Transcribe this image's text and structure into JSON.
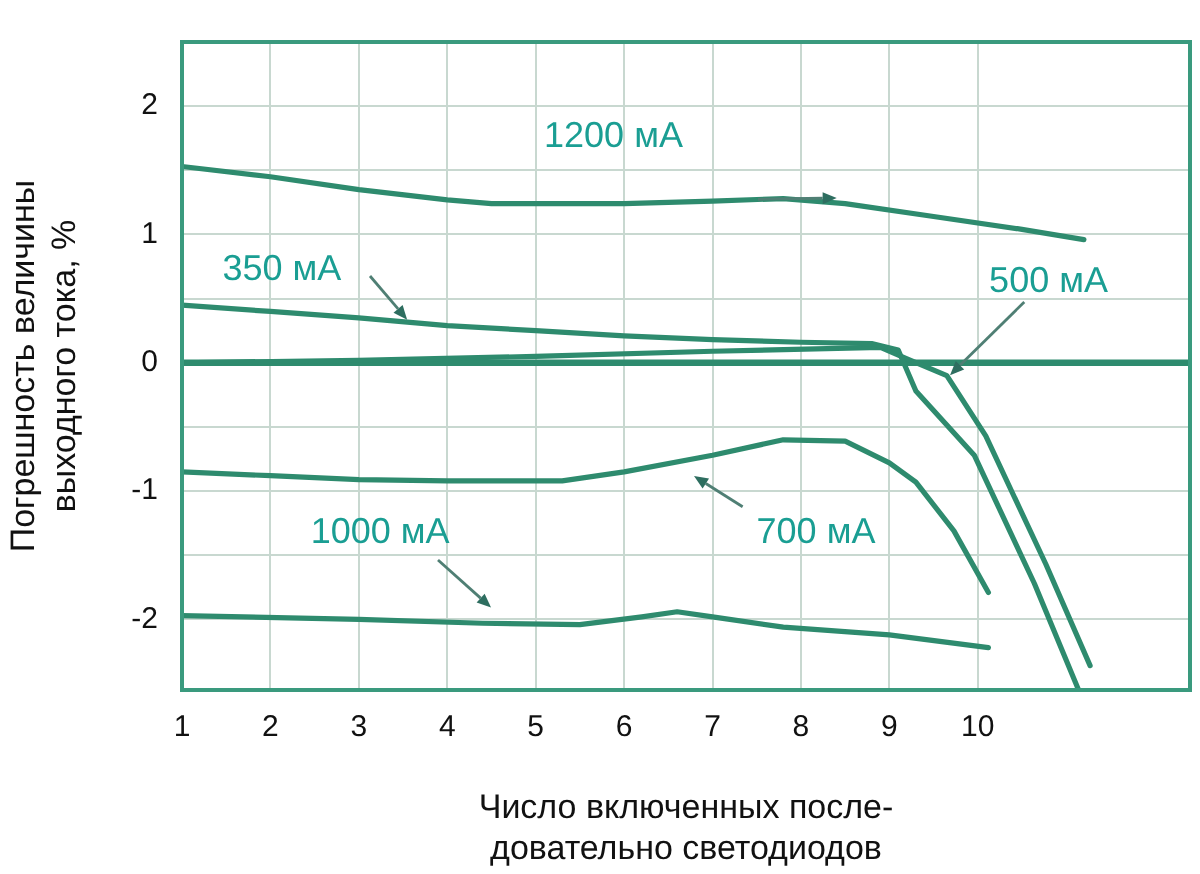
{
  "chart_data": {
    "type": "line",
    "xlabel": "Число включенных после-\nдовательно светодиодов",
    "ylabel": "Погрешность величины\nвыходного тока, %",
    "xlim": [
      1,
      12.4
    ],
    "xticks": [
      1,
      2,
      3,
      4,
      5,
      6,
      7,
      8,
      9,
      10
    ],
    "ylim": [
      -2.55,
      2.5
    ],
    "yticks": [
      -2,
      {
        "value": -1.5,
        "label": null
      },
      -1,
      {
        "value": -0.5,
        "label": null
      },
      0,
      {
        "value": 0.5,
        "label": null
      },
      1,
      {
        "value": 1.5,
        "label": null
      },
      2
    ],
    "grid": true,
    "legend": false,
    "marker": "none",
    "line_style": "solid",
    "ref_lines": [
      {
        "axis": "y",
        "value": 0,
        "color": "#2e8b6e"
      }
    ],
    "series": [
      {
        "name": "1200 мА",
        "color": "#2e8b6e",
        "x": [
          1,
          2,
          3,
          4,
          4.5,
          6,
          7,
          7.8,
          8.5,
          9.5,
          10.5,
          11.2
        ],
        "values": [
          1.53,
          1.45,
          1.35,
          1.27,
          1.24,
          1.24,
          1.26,
          1.28,
          1.24,
          1.14,
          1.04,
          0.96
        ]
      },
      {
        "name": "350 мА",
        "color": "#2e8b6e",
        "x": [
          1,
          2,
          3,
          4,
          5,
          6,
          7,
          8,
          8.8,
          9.1,
          9.3,
          9.96,
          10.64,
          11.14
        ],
        "values": [
          0.45,
          0.4,
          0.35,
          0.29,
          0.25,
          0.21,
          0.18,
          0.16,
          0.15,
          0.1,
          -0.22,
          -0.72,
          -1.72,
          -2.55
        ]
      },
      {
        "name": "500 мА",
        "color": "#2e8b6e",
        "x": [
          1,
          3,
          5,
          7,
          8.9,
          9.2,
          9.65,
          10.09,
          10.77,
          11.27
        ],
        "values": [
          0,
          0.02,
          0.05,
          0.09,
          0.12,
          0.03,
          -0.1,
          -0.57,
          -1.57,
          -2.36
        ]
      },
      {
        "name": "700 мА",
        "color": "#2e8b6e",
        "x": [
          1,
          2,
          3,
          4,
          5.3,
          6,
          7,
          7.8,
          8.5,
          9,
          9.3,
          9.73,
          10.12
        ],
        "values": [
          -0.85,
          -0.88,
          -0.91,
          -0.92,
          -0.92,
          -0.85,
          -0.72,
          -0.6,
          -0.61,
          -0.78,
          -0.93,
          -1.31,
          -1.79
        ]
      },
      {
        "name": "1000 мА",
        "color": "#2e8b6e",
        "x": [
          1,
          3,
          4.4,
          5.5,
          6.2,
          6.6,
          7,
          7.8,
          9,
          10.12
        ],
        "values": [
          -1.97,
          -2,
          -2.03,
          -2.04,
          -1.98,
          -1.94,
          -1.98,
          -2.06,
          -2.12,
          -2.22
        ]
      }
    ]
  }
}
